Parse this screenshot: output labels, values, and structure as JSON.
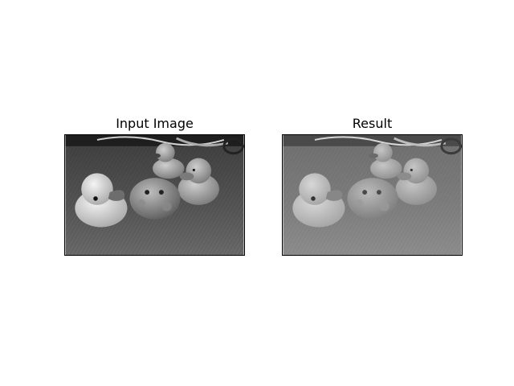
{
  "figure": {
    "panels": [
      {
        "title": "Input Image"
      },
      {
        "title": "Result"
      }
    ]
  },
  "colors": {
    "background": "#ffffff",
    "frame": "#000000"
  }
}
